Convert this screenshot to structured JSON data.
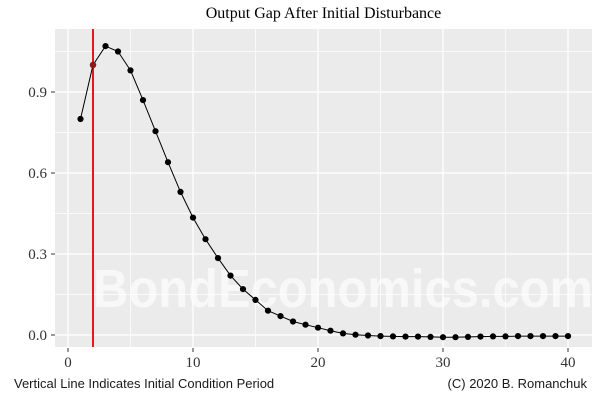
{
  "footer": {
    "left": "Vertical Line Indicates Initial Condition Period",
    "right": "(C) 2020 B. Romanchuk"
  },
  "watermark": "BondEconomics.com",
  "colors": {
    "panel_bg": "#ebebeb",
    "grid_major": "#ffffff",
    "grid_minor": "#ffffff",
    "line": "#000000",
    "point": "#000000",
    "vline": "#e60000",
    "highlight_point": "#8b1a1a",
    "tick_label": "#333333",
    "tick_mark": "#333333",
    "watermark_fill": "rgba(255,255,255,0.65)"
  },
  "chart_data": {
    "type": "line",
    "marker": "circle",
    "title": "Output Gap After Initial Disturbance",
    "xlabel": "",
    "ylabel": "",
    "xlim": [
      -1.05,
      41.9
    ],
    "ylim": [
      -0.045,
      1.135
    ],
    "grid": "on",
    "legend": "none",
    "x_ticks": [
      0,
      10,
      20,
      30,
      40
    ],
    "x_tick_labels": [
      "0",
      "10",
      "20",
      "30",
      "40"
    ],
    "x_minor_ticks": [
      5,
      15,
      25,
      35
    ],
    "y_ticks": [
      0.0,
      0.3,
      0.6,
      0.9
    ],
    "y_tick_labels": [
      "0.0",
      "0.3",
      "0.6",
      "0.9"
    ],
    "y_minor_ticks": [
      0.15,
      0.45,
      0.75,
      1.05
    ],
    "vline_x": 2,
    "vline_meaning": "Initial Condition Period",
    "highlight_point": {
      "x": 2,
      "y": 1.0
    },
    "x": [
      1,
      2,
      3,
      4,
      5,
      6,
      7,
      8,
      9,
      10,
      11,
      12,
      13,
      14,
      15,
      16,
      17,
      18,
      19,
      20,
      21,
      22,
      23,
      24,
      25,
      26,
      27,
      28,
      29,
      30,
      31,
      32,
      33,
      34,
      35,
      36,
      37,
      38,
      39,
      40
    ],
    "y": [
      0.8,
      1.0,
      1.07,
      1.05,
      0.98,
      0.87,
      0.755,
      0.64,
      0.53,
      0.435,
      0.355,
      0.285,
      0.22,
      0.17,
      0.13,
      0.09,
      0.07,
      0.05,
      0.038,
      0.027,
      0.016,
      0.006,
      0.001,
      -0.002,
      -0.004,
      -0.005,
      -0.006,
      -0.006,
      -0.007,
      -0.008,
      -0.008,
      -0.007,
      -0.006,
      -0.005,
      -0.005,
      -0.004,
      -0.004,
      -0.004,
      -0.004,
      -0.004
    ]
  }
}
